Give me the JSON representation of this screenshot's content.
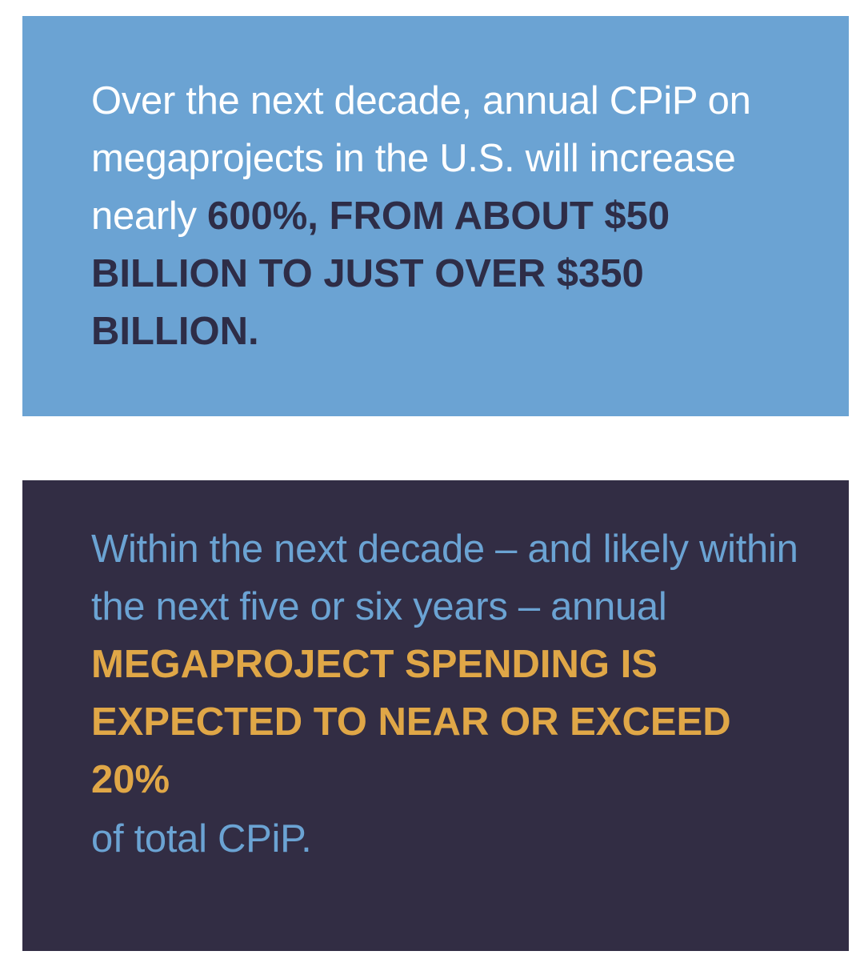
{
  "stat_top": {
    "lead": "Over the next decade, annual CPiP on megaprojects in the U.S. will increase nearly ",
    "highlight": "600%, FROM ABOUT $50 BILLION TO JUST OVER $350 BILLION.",
    "background_color": "#6ba3d3",
    "text_color": "#ffffff",
    "highlight_color": "#2e2d47"
  },
  "stat_bottom": {
    "lead": "Within the next decade – and likely within the next five or six years – annual ",
    "highlight": "MEGAPROJECT SPENDING IS EXPECTED TO NEAR OR EXCEED 20%",
    "tail": "of total CPiP.",
    "background_color": "#322d44",
    "text_color": "#6ba3d3",
    "highlight_color": "#e0a747"
  }
}
